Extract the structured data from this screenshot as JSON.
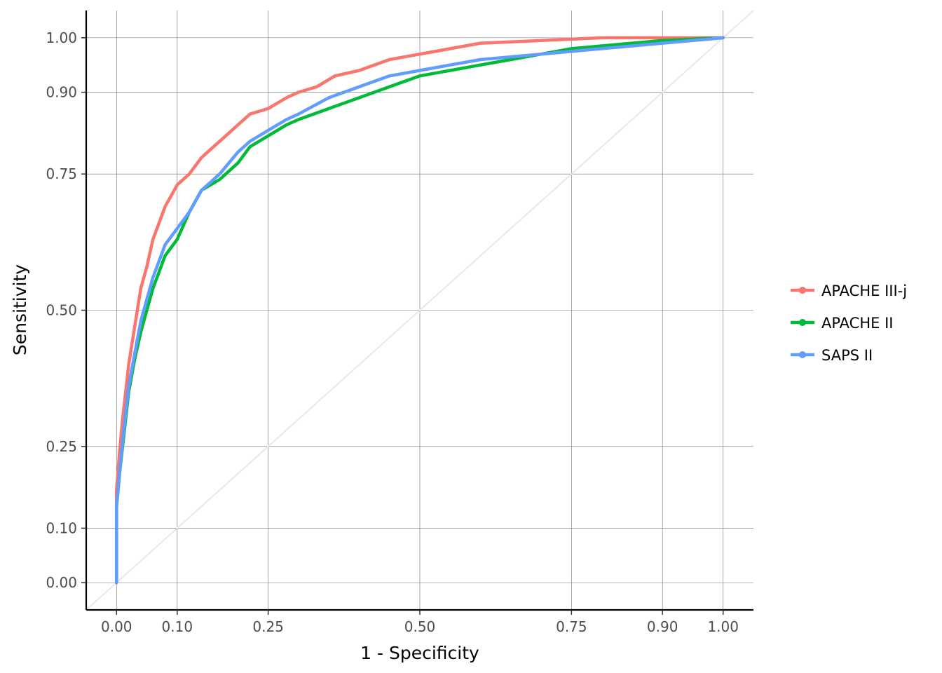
{
  "chart_data": {
    "type": "line",
    "title": "",
    "xlabel": "1 - Specificity",
    "ylabel": "Sensitivity",
    "xlim": [
      -0.05,
      1.05
    ],
    "ylim": [
      -0.05,
      1.05
    ],
    "x_ticks": [
      0.0,
      0.1,
      0.25,
      0.5,
      0.75,
      0.9,
      1.0
    ],
    "x_tick_labels": [
      "0.00",
      "0.10",
      "0.25",
      "0.50",
      "0.75",
      "0.90",
      "1.00"
    ],
    "y_ticks": [
      0.0,
      0.1,
      0.25,
      0.5,
      0.75,
      0.9,
      1.0
    ],
    "y_tick_labels": [
      "0.00",
      "0.10",
      "0.25",
      "0.50",
      "0.75",
      "0.90",
      "1.00"
    ],
    "grid": true,
    "diagonal_reference": {
      "color": "#e8e8e8"
    },
    "legend_position": "right",
    "series": [
      {
        "name": "APACHE III-j",
        "color": "#F8766D",
        "points": [
          [
            0.0,
            0.0
          ],
          [
            0.0,
            0.17
          ],
          [
            0.005,
            0.24
          ],
          [
            0.01,
            0.3
          ],
          [
            0.015,
            0.35
          ],
          [
            0.02,
            0.4
          ],
          [
            0.03,
            0.47
          ],
          [
            0.04,
            0.54
          ],
          [
            0.05,
            0.58
          ],
          [
            0.06,
            0.63
          ],
          [
            0.07,
            0.66
          ],
          [
            0.08,
            0.69
          ],
          [
            0.09,
            0.71
          ],
          [
            0.1,
            0.73
          ],
          [
            0.12,
            0.75
          ],
          [
            0.14,
            0.78
          ],
          [
            0.16,
            0.8
          ],
          [
            0.18,
            0.82
          ],
          [
            0.2,
            0.84
          ],
          [
            0.22,
            0.86
          ],
          [
            0.25,
            0.87
          ],
          [
            0.28,
            0.89
          ],
          [
            0.3,
            0.9
          ],
          [
            0.33,
            0.91
          ],
          [
            0.36,
            0.93
          ],
          [
            0.4,
            0.94
          ],
          [
            0.45,
            0.96
          ],
          [
            0.5,
            0.97
          ],
          [
            0.55,
            0.98
          ],
          [
            0.6,
            0.99
          ],
          [
            0.7,
            0.995
          ],
          [
            0.8,
            1.0
          ],
          [
            0.9,
            1.0
          ],
          [
            1.0,
            1.0
          ]
        ]
      },
      {
        "name": "APACHE II",
        "color": "#00BA38",
        "points": [
          [
            0.0,
            0.0
          ],
          [
            0.0,
            0.14
          ],
          [
            0.005,
            0.2
          ],
          [
            0.01,
            0.25
          ],
          [
            0.015,
            0.3
          ],
          [
            0.02,
            0.35
          ],
          [
            0.03,
            0.41
          ],
          [
            0.04,
            0.46
          ],
          [
            0.05,
            0.5
          ],
          [
            0.06,
            0.54
          ],
          [
            0.07,
            0.57
          ],
          [
            0.08,
            0.6
          ],
          [
            0.1,
            0.63
          ],
          [
            0.12,
            0.68
          ],
          [
            0.14,
            0.72
          ],
          [
            0.17,
            0.74
          ],
          [
            0.2,
            0.77
          ],
          [
            0.22,
            0.8
          ],
          [
            0.25,
            0.82
          ],
          [
            0.28,
            0.84
          ],
          [
            0.3,
            0.85
          ],
          [
            0.35,
            0.87
          ],
          [
            0.4,
            0.89
          ],
          [
            0.45,
            0.91
          ],
          [
            0.5,
            0.93
          ],
          [
            0.55,
            0.94
          ],
          [
            0.6,
            0.95
          ],
          [
            0.65,
            0.96
          ],
          [
            0.7,
            0.97
          ],
          [
            0.75,
            0.98
          ],
          [
            0.8,
            0.985
          ],
          [
            0.85,
            0.99
          ],
          [
            0.9,
            0.995
          ],
          [
            1.0,
            1.0
          ]
        ]
      },
      {
        "name": "SAPS II",
        "color": "#619CFF",
        "points": [
          [
            0.0,
            0.0
          ],
          [
            0.0,
            0.14
          ],
          [
            0.005,
            0.2
          ],
          [
            0.01,
            0.26
          ],
          [
            0.015,
            0.31
          ],
          [
            0.02,
            0.36
          ],
          [
            0.03,
            0.42
          ],
          [
            0.04,
            0.48
          ],
          [
            0.05,
            0.52
          ],
          [
            0.06,
            0.56
          ],
          [
            0.07,
            0.59
          ],
          [
            0.08,
            0.62
          ],
          [
            0.1,
            0.65
          ],
          [
            0.12,
            0.68
          ],
          [
            0.14,
            0.72
          ],
          [
            0.17,
            0.75
          ],
          [
            0.2,
            0.79
          ],
          [
            0.22,
            0.81
          ],
          [
            0.25,
            0.83
          ],
          [
            0.28,
            0.85
          ],
          [
            0.3,
            0.86
          ],
          [
            0.35,
            0.89
          ],
          [
            0.4,
            0.91
          ],
          [
            0.45,
            0.93
          ],
          [
            0.5,
            0.94
          ],
          [
            0.55,
            0.95
          ],
          [
            0.6,
            0.96
          ],
          [
            0.65,
            0.965
          ],
          [
            0.7,
            0.97
          ],
          [
            0.75,
            0.975
          ],
          [
            0.8,
            0.98
          ],
          [
            0.85,
            0.985
          ],
          [
            0.9,
            0.99
          ],
          [
            0.95,
            0.995
          ],
          [
            1.0,
            1.0
          ]
        ]
      }
    ]
  }
}
